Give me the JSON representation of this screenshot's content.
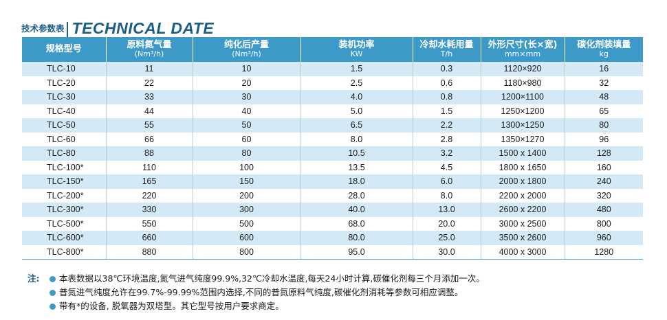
{
  "title": {
    "cn": "技术参数表",
    "en": "TECHNICAL DATE"
  },
  "table": {
    "headers": [
      {
        "label": "规格型号",
        "unit": ""
      },
      {
        "label": "原料氮气量",
        "unit": "(Nm³/h)"
      },
      {
        "label": "纯化后产量",
        "unit": "(Nm³/h)"
      },
      {
        "label": "装机功率",
        "unit": "KW"
      },
      {
        "label": "冷却水耗用量",
        "unit": "T/h"
      },
      {
        "label": "外形尺寸(长×宽)",
        "unit": "mm×mm"
      },
      {
        "label": "碳化剂装填量",
        "unit": "kg"
      }
    ],
    "rows": [
      [
        "TLC-10",
        "11",
        "10",
        "1.5",
        "0.3",
        "1120×920",
        "16"
      ],
      [
        "TLC-20",
        "22",
        "20",
        "2.5",
        "0.6",
        "1180×980",
        "32"
      ],
      [
        "TLC-30",
        "33",
        "30",
        "4.0",
        "0.8",
        "1200×1100",
        "48"
      ],
      [
        "TLC-40",
        "44",
        "40",
        "5.0",
        "1.5",
        "1250×1200",
        "65"
      ],
      [
        "TLC-50",
        "55",
        "50",
        "6.5",
        "2.2",
        "1300×1250",
        "80"
      ],
      [
        "TLC-60",
        "66",
        "60",
        "8.0",
        "2.8",
        "1350×1270",
        "96"
      ],
      [
        "TLC-80",
        "88",
        "80",
        "10.5",
        "3.2",
        "1500 x 1400",
        "128"
      ],
      [
        "TLC-100*",
        "110",
        "100",
        "13.5",
        "4.5",
        "1800 x 1650",
        "160"
      ],
      [
        "TLC-150*",
        "165",
        "150",
        "18.0",
        "6.0",
        "2000 x 1800",
        "240"
      ],
      [
        "TLC-200*",
        "220",
        "200",
        "28.0",
        "8.0",
        "2200 x 2000",
        "320"
      ],
      [
        "TLC-300*",
        "330",
        "300",
        "40.0",
        "13.0",
        "2600 x 2200",
        "480"
      ],
      [
        "TLC-500*",
        "550",
        "500",
        "68.0",
        "20.0",
        "3000 x 2500",
        "800"
      ],
      [
        "TLC-600*",
        "660",
        "600",
        "80.0",
        "25.0",
        "3500 x 2600",
        "960"
      ],
      [
        "TLC-800*",
        "880",
        "800",
        "95.0",
        "30.0",
        "4000 x 3000",
        "1280"
      ]
    ]
  },
  "notes": {
    "prefix": "注:",
    "items": [
      "本表数据以38℃环境温度,氮气进气纯度99.9%,32℃冷却水温度,每天24小时计算,碳催化剂每三个月添加一次。",
      "普氮进气纯度允许在99.7%-99.99%范围内选择,不同的普氮原料气纯度,碳催化剂消耗等参数可相应调整。",
      "带有*的设备, 脱氧器为双塔型。其它型号按用户要求商定。"
    ]
  },
  "colors": {
    "header_bg": "#3d9ac8",
    "stripe": "#d3e9f6",
    "title": "#1c5f86"
  }
}
